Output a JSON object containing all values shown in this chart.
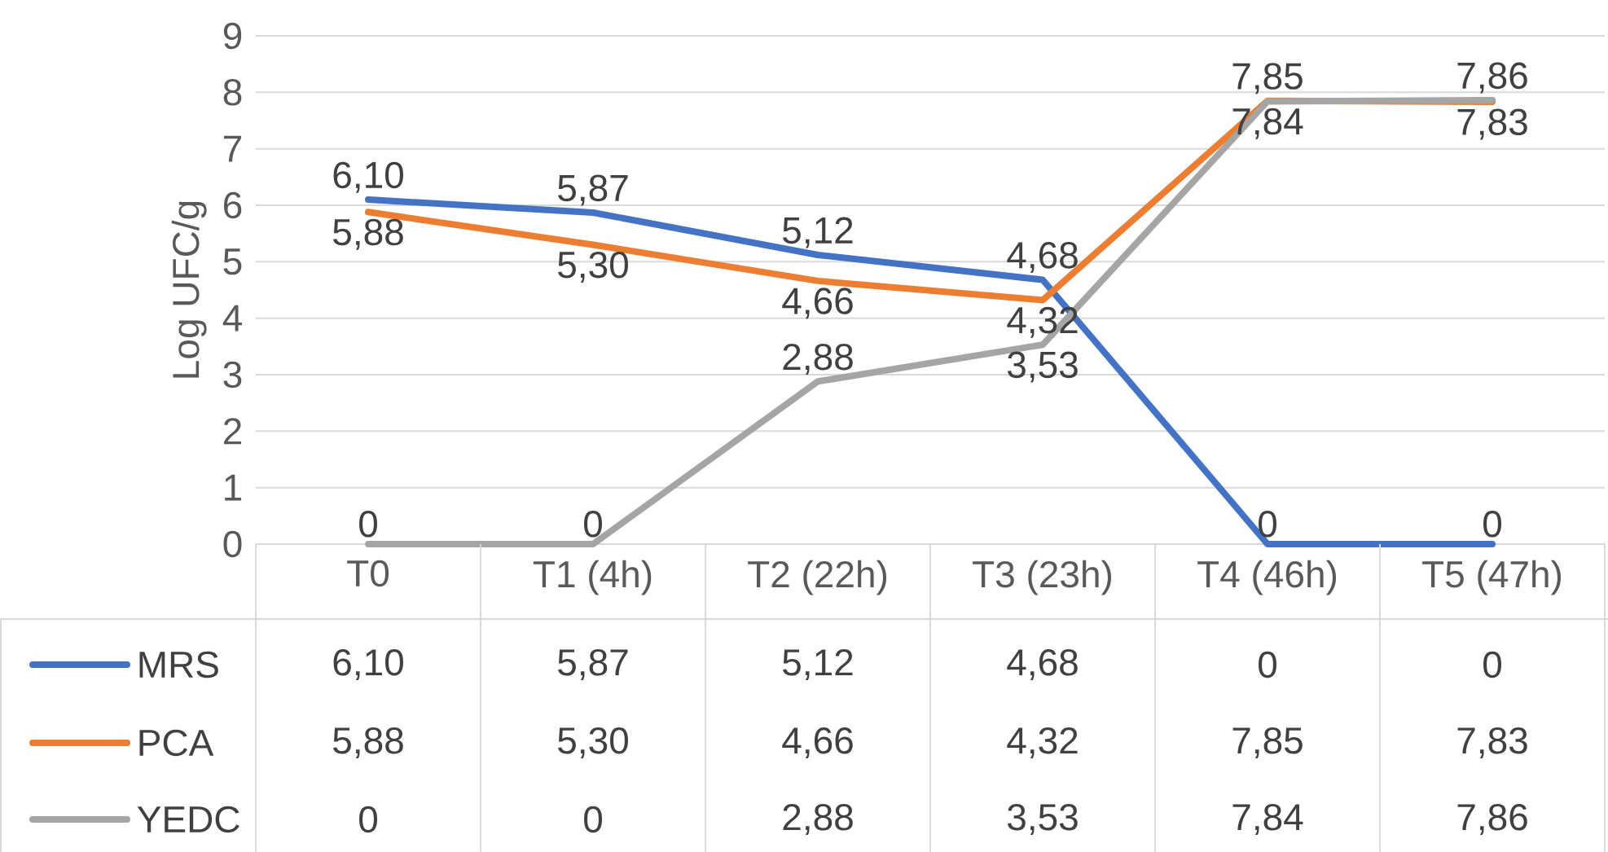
{
  "chart_data": {
    "type": "line",
    "ylabel": "Log UFC/g",
    "categories": [
      "T0",
      "T1 (4h)",
      "T2 (22h)",
      "T3 (23h)",
      "T4 (46h)",
      "T5 (47h)"
    ],
    "series": [
      {
        "name": "MRS",
        "color": "#4472c4",
        "values": [
          6.1,
          5.87,
          5.12,
          4.68,
          0,
          0
        ],
        "value_labels": [
          "6,10",
          "5,87",
          "5,12",
          "4,68",
          "0",
          "0"
        ]
      },
      {
        "name": "PCA",
        "color": "#ed7d31",
        "values": [
          5.88,
          5.3,
          4.66,
          4.32,
          7.85,
          7.83
        ],
        "value_labels": [
          "5,88",
          "5,30",
          "4,66",
          "4,32",
          "7,85",
          "7,83"
        ]
      },
      {
        "name": "YEDC",
        "color": "#a5a5a5",
        "values": [
          0,
          0,
          2.88,
          3.53,
          7.84,
          7.86
        ],
        "value_labels": [
          "0",
          "0",
          "2,88",
          "3,53",
          "7,84",
          "7,86"
        ]
      }
    ],
    "ylim": [
      0,
      9
    ],
    "yticks": [
      0,
      1,
      2,
      3,
      4,
      5,
      6,
      7,
      8,
      9
    ],
    "grid": "y",
    "legend": "bottom"
  }
}
